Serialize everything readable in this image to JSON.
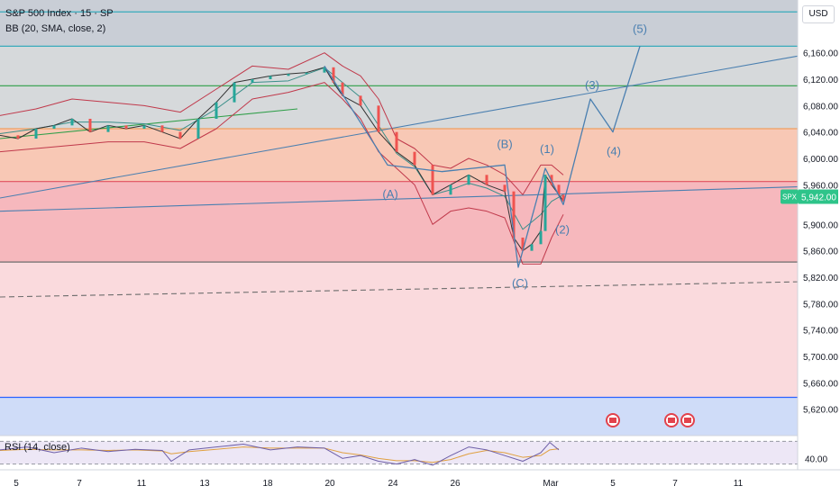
{
  "header": {
    "symbol_line": "S&P 500 Index · 15 · SP",
    "indicator_line": "BB (20, SMA, close, 2)",
    "currency_button": "USD"
  },
  "colors": {
    "bg_top": "#c9ced6",
    "bg_upper": "#d6d9db",
    "bg_orange": "#f8c8b5",
    "bg_red": "#f6b8bd",
    "bg_pink": "#fadadd",
    "bg_blue": "#cfdcf8",
    "line_cyan": "#26a6b8",
    "line_green": "#2e9e48",
    "line_orange": "#f0a060",
    "line_red": "#e0505f",
    "line_gray": "#6d6d6d",
    "line_blue": "#2962ff",
    "wave": "#4a7fb0",
    "bb_upper": "#c0394b",
    "bb_basis": "#3a8f8a",
    "rsi": "#6e5fa8",
    "rsi_ma": "#e0a040",
    "badge": "#e2424c"
  },
  "chart_data": {
    "type": "line",
    "title": "S&P 500 Index · 15 · SP",
    "ylim": [
      5580,
      6240
    ],
    "y_ticks": [
      6160,
      6120,
      6080,
      6040,
      6000,
      5960,
      5900,
      5860,
      5820,
      5780,
      5740,
      5700,
      5660,
      5620
    ],
    "y_tick_labels": [
      "6,160.00",
      "6,120.00",
      "6,080.00",
      "6,040.00",
      "6,000.00",
      "5,960.00",
      "5,900.00",
      "5,860.00",
      "5,820.00",
      "5,780.00",
      "5,740.00",
      "5,700.00",
      "5,660.00",
      "5,620.00"
    ],
    "x_ticks": [
      {
        "label": "5",
        "t": 18
      },
      {
        "label": "7",
        "t": 88
      },
      {
        "label": "11",
        "t": 157
      },
      {
        "label": "13",
        "t": 227
      },
      {
        "label": "18",
        "t": 297
      },
      {
        "label": "20",
        "t": 366
      },
      {
        "label": "24",
        "t": 436
      },
      {
        "label": "26",
        "t": 505
      },
      {
        "label": "Mar",
        "t": 611
      },
      {
        "label": "5",
        "t": 680
      },
      {
        "label": "7",
        "t": 749
      },
      {
        "label": "11",
        "t": 819
      }
    ],
    "horizontal_levels": [
      6222,
      6170,
      6110,
      6045,
      5965,
      5843,
      5638
    ],
    "zones": [
      {
        "from": 6170,
        "to": 6240,
        "color": "bg_top"
      },
      {
        "from": 6045,
        "to": 6170,
        "color": "bg_upper"
      },
      {
        "from": 5965,
        "to": 6045,
        "color": "bg_orange"
      },
      {
        "from": 5843,
        "to": 5965,
        "color": "bg_red"
      },
      {
        "from": 5638,
        "to": 5843,
        "color": "bg_pink"
      },
      {
        "from": 5580,
        "to": 5638,
        "color": "bg_blue"
      }
    ],
    "price_series": {
      "x": [
        0,
        20,
        40,
        60,
        80,
        100,
        120,
        140,
        160,
        180,
        200,
        220,
        240,
        260,
        280,
        300,
        320,
        340,
        360,
        370,
        380,
        400,
        420,
        440,
        460,
        480,
        500,
        520,
        540,
        560,
        570,
        580,
        590,
        600,
        605,
        612,
        620,
        625
      ],
      "y": [
        6035,
        6030,
        6045,
        6050,
        6060,
        6040,
        6050,
        6045,
        6050,
        6040,
        6030,
        6060,
        6085,
        6115,
        6120,
        6125,
        6128,
        6130,
        6138,
        6115,
        6095,
        6080,
        6040,
        6010,
        5990,
        5945,
        5960,
        5975,
        5960,
        5950,
        5880,
        5860,
        5870,
        5890,
        5975,
        5960,
        5945,
        5935
      ]
    },
    "bb_upper": {
      "x": [
        0,
        40,
        80,
        120,
        160,
        200,
        240,
        280,
        320,
        360,
        380,
        400,
        420,
        440,
        460,
        480,
        500,
        520,
        540,
        560,
        580,
        600,
        612,
        625
      ],
      "y": [
        6065,
        6075,
        6090,
        6085,
        6080,
        6070,
        6105,
        6140,
        6135,
        6160,
        6140,
        6125,
        6090,
        6030,
        6015,
        5990,
        5985,
        6000,
        5990,
        5975,
        5945,
        5990,
        5990,
        5975
      ]
    },
    "bb_lower": {
      "x": [
        0,
        40,
        80,
        120,
        160,
        200,
        240,
        280,
        320,
        360,
        380,
        400,
        420,
        440,
        460,
        480,
        500,
        520,
        540,
        560,
        580,
        600,
        612,
        625
      ],
      "y": [
        6010,
        6015,
        6020,
        6025,
        6025,
        6015,
        6045,
        6090,
        6100,
        6115,
        6090,
        6060,
        6010,
        5985,
        5960,
        5900,
        5920,
        5925,
        5920,
        5910,
        5840,
        5840,
        5880,
        5915
      ]
    },
    "wave_path": {
      "x": [
        360,
        430,
        490,
        560,
        575,
        605,
        625,
        655,
        680,
        710
      ],
      "y": [
        6140,
        5990,
        5980,
        5990,
        5835,
        5985,
        5930,
        6090,
        6040,
        6170
      ]
    },
    "wave_labels": [
      {
        "text": "(A)",
        "t": 433,
        "v": 5940
      },
      {
        "text": "(B)",
        "t": 560,
        "v": 6016
      },
      {
        "text": "(C)",
        "t": 577,
        "v": 5805
      },
      {
        "text": "(1)",
        "t": 607,
        "v": 6008
      },
      {
        "text": "(2)",
        "t": 624,
        "v": 5886
      },
      {
        "text": "(3)",
        "t": 657,
        "v": 6105
      },
      {
        "text": "(4)",
        "t": 681,
        "v": 6005
      },
      {
        "text": "(5)",
        "t": 710,
        "v": 6190
      }
    ],
    "trendlines": [
      {
        "t1": 0,
        "v1": 5940,
        "t2": 885,
        "v2": 6155,
        "color": "wave"
      },
      {
        "t1": 0,
        "v1": 5920,
        "t2": 885,
        "v2": 5957,
        "color": "wave"
      },
      {
        "t1": 0,
        "v1": 6030,
        "t2": 330,
        "v2": 6075,
        "color": "line_green"
      },
      {
        "t1": 0,
        "v1": 5790,
        "t2": 885,
        "v2": 5813,
        "color": "line_gray",
        "dashed": true
      }
    ],
    "current_price_label": "5,942.00",
    "current_price_tag": "SPX",
    "current_price": 5942,
    "event_badges": [
      680,
      745,
      763
    ],
    "rsi": {
      "label": "RSI (14, close)",
      "tick_label": "40.00",
      "ylim": [
        20,
        80
      ],
      "upper_band": 70,
      "lower_band": 30,
      "x": [
        0,
        30,
        60,
        90,
        120,
        150,
        180,
        190,
        210,
        240,
        270,
        300,
        330,
        360,
        380,
        400,
        420,
        440,
        460,
        480,
        500,
        520,
        540,
        560,
        580,
        600,
        610,
        620
      ],
      "y": [
        55,
        60,
        50,
        58,
        52,
        56,
        54,
        35,
        55,
        60,
        65,
        55,
        60,
        58,
        40,
        45,
        35,
        30,
        38,
        28,
        45,
        60,
        55,
        45,
        35,
        50,
        68,
        55
      ],
      "ma_y": [
        54,
        56,
        55,
        55,
        54,
        55,
        53,
        48,
        52,
        56,
        60,
        58,
        58,
        58,
        50,
        46,
        40,
        36,
        36,
        33,
        38,
        48,
        54,
        50,
        42,
        45,
        55,
        57
      ]
    }
  }
}
